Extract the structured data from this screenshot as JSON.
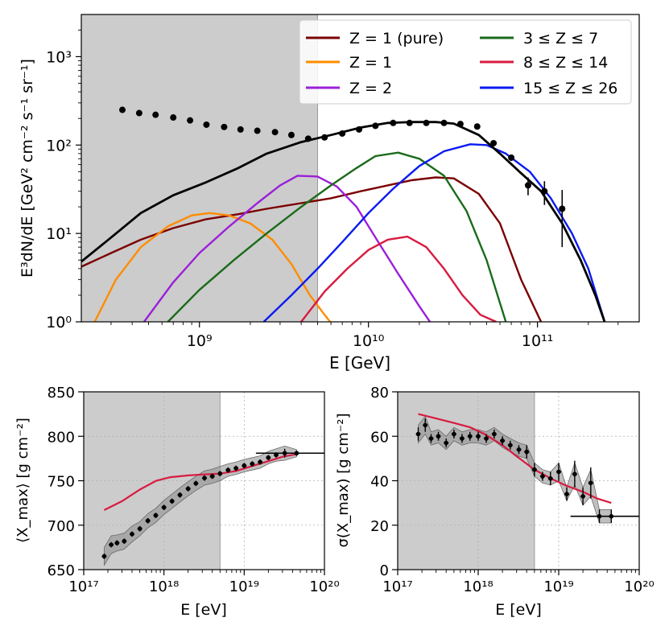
{
  "chart_data": [
    {
      "type": "line",
      "xlabel": "E [GeV]",
      "ylabel": "E³dN/dE [GeV² cm⁻² s⁻¹ sr⁻¹]",
      "xscale": "log",
      "yscale": "log",
      "xlim": [
        200000000.0,
        400000000000.0
      ],
      "ylim": [
        1,
        3000
      ],
      "x_ticks": [
        1000000000.0,
        10000000000.0,
        100000000000.0
      ],
      "x_tick_labels": [
        "10⁹",
        "10¹⁰",
        "10¹¹"
      ],
      "y_ticks": [
        1,
        10,
        100,
        1000
      ],
      "y_tick_labels": [
        "10⁰",
        "10¹",
        "10²",
        "10³"
      ],
      "shaded_region": [
        200000000.0,
        5000000000.0
      ],
      "legend_position": "upper-right",
      "series": [
        {
          "name": "Z = 1 (pure)",
          "color": "#7b0000",
          "x": [
            200000000.0,
            300000000.0,
            450000000.0,
            700000000.0,
            1100000000.0,
            1700000000.0,
            2500000000.0,
            4000000000.0,
            6000000000.0,
            9000000000.0,
            13000000000.0,
            18000000000.0,
            25000000000.0,
            32000000000.0,
            45000000000.0,
            60000000000.0,
            80000000000.0,
            105000000000.0
          ],
          "y": [
            4.2,
            6.0,
            8.5,
            11.5,
            14.5,
            16.5,
            19,
            22,
            25,
            30,
            35,
            40,
            43,
            42,
            28,
            13,
            3.0,
            1.0
          ]
        },
        {
          "name": "Z = 1",
          "color": "#ff8c00",
          "x": [
            240000000.0,
            320000000.0,
            450000000.0,
            650000000.0,
            900000000.0,
            1150000000.0,
            1500000000.0,
            2000000000.0,
            2700000000.0,
            3500000000.0,
            4500000000.0,
            5500000000.0,
            6200000000.0
          ],
          "y": [
            1.0,
            3.0,
            7.0,
            12,
            16,
            17,
            16,
            13,
            8.5,
            4.5,
            2.0,
            1.2,
            0.9
          ]
        },
        {
          "name": "Z = 2",
          "color": "#9b1fd9",
          "x": [
            470000000.0,
            700000000.0,
            1000000000.0,
            1500000000.0,
            2200000000.0,
            3000000000.0,
            3800000000.0,
            5000000000.0,
            6500000000.0,
            8500000000.0,
            11000000000.0,
            15000000000.0,
            20000000000.0,
            24000000000.0
          ],
          "y": [
            1.0,
            2.8,
            6.0,
            12,
            22,
            35,
            45,
            44,
            34,
            20,
            9,
            3.5,
            1.5,
            0.9
          ]
        },
        {
          "name": "3 ≤ Z ≤ 7",
          "color": "#1a6b1a",
          "x": [
            650000000.0,
            1000000000.0,
            1600000000.0,
            2500000000.0,
            4000000000.0,
            6000000000.0,
            8500000000.0,
            11000000000.0,
            15000000000.0,
            20000000000.0,
            28000000000.0,
            38000000000.0,
            50000000000.0,
            65000000000.0
          ],
          "y": [
            1.0,
            2.3,
            5.0,
            10,
            20,
            35,
            55,
            75,
            82,
            70,
            45,
            18,
            5,
            1.0
          ]
        },
        {
          "name": "8 ≤ Z ≤ 14",
          "color": "#d81b40",
          "x": [
            4000000000.0,
            5500000000.0,
            7500000000.0,
            10000000000.0,
            13000000000.0,
            17000000000.0,
            22000000000.0,
            28000000000.0,
            36000000000.0,
            46000000000.0,
            57000000000.0
          ],
          "y": [
            1.0,
            2.2,
            4.0,
            6.5,
            8.5,
            9.2,
            7.0,
            4.0,
            2.0,
            1.2,
            1.0
          ]
        },
        {
          "name": "15 ≤ Z ≤ 26",
          "color": "#0b1bf0",
          "x": [
            2400000000.0,
            3500000000.0,
            5000000000.0,
            7000000000.0,
            10000000000.0,
            14000000000.0,
            20000000000.0,
            28000000000.0,
            40000000000.0,
            50000000000.0,
            65000000000.0,
            90000000000.0,
            120000000000.0,
            160000000000.0,
            200000000000.0,
            250000000000.0
          ],
          "y": [
            1.0,
            2.0,
            4.0,
            8.0,
            17,
            32,
            58,
            85,
            102,
            100,
            80,
            50,
            25,
            10,
            4,
            1.0
          ]
        },
        {
          "name": "",
          "color": "#000000",
          "x": [
            200000000.0,
            300000000.0,
            450000000.0,
            700000000.0,
            1100000000.0,
            1700000000.0,
            2500000000.0,
            4000000000.0,
            6000000000.0,
            9000000000.0,
            13000000000.0,
            18000000000.0,
            25000000000.0,
            32000000000.0,
            45000000000.0,
            60000000000.0,
            80000000000.0,
            105000000000.0,
            140000000000.0,
            180000000000.0,
            220000000000.0,
            260000000000.0
          ],
          "y": [
            4.8,
            9.0,
            17,
            27,
            38,
            55,
            80,
            108,
            130,
            158,
            178,
            182,
            182,
            175,
            130,
            80,
            48,
            30,
            13,
            5,
            2.0,
            0.8
          ]
        }
      ],
      "data_points": {
        "x": [
          350000000.0,
          440000000.0,
          550000000.0,
          700000000.0,
          880000000.0,
          1100000000.0,
          1400000000.0,
          1750000000.0,
          2200000000.0,
          2800000000.0,
          3500000000.0,
          4400000000.0,
          5500000000.0,
          7000000000.0,
          8800000000.0,
          11000000000.0,
          14000000000.0,
          17500000000.0,
          22000000000.0,
          28000000000.0,
          35000000000.0,
          44000000000.0,
          55000000000.0,
          70000000000.0,
          88000000000.0,
          110000000000.0,
          140000000000.0
        ],
        "y": [
          250,
          230,
          220,
          205,
          190,
          170,
          160,
          150,
          145,
          140,
          130,
          118,
          122,
          135,
          150,
          165,
          178,
          178,
          178,
          178,
          173,
          162,
          105,
          72,
          35,
          30,
          19
        ],
        "y_err": [
          0,
          0,
          0,
          0,
          0,
          0,
          0,
          0,
          0,
          0,
          0,
          0,
          0,
          0,
          0,
          0,
          0,
          0,
          0,
          0,
          0,
          0,
          0,
          6,
          8,
          9,
          12
        ]
      }
    },
    {
      "type": "scatter",
      "xlabel": "E [eV]",
      "ylabel": "⟨X_max⟩ [g cm⁻²]",
      "xscale": "log",
      "xlim": [
        1e+17,
        1e+20
      ],
      "ylim": [
        650,
        850
      ],
      "x_ticks": [
        1e+17,
        1e+18,
        1e+19,
        1e+20
      ],
      "x_tick_labels": [
        "10¹⁷",
        "10¹⁸",
        "10¹⁹",
        "10²⁰"
      ],
      "y_ticks": [
        650,
        700,
        750,
        800,
        850
      ],
      "y_tick_labels": [
        "650",
        "700",
        "750",
        "800",
        "850"
      ],
      "shaded_region": [
        1e+17,
        5e+18
      ],
      "grid": true,
      "model": {
        "color": "#d81b40",
        "x": [
          1.8e+17,
          3e+17,
          5e+17,
          8e+17,
          1.2e+18,
          2e+18,
          3e+18,
          5e+18,
          8e+18,
          1.2e+19,
          2e+19,
          3e+19,
          4.5e+19
        ],
        "y": [
          717,
          727,
          740,
          750,
          754,
          756,
          757,
          758,
          761,
          766,
          772,
          777,
          780
        ]
      },
      "data": {
        "x": [
          1.8e+17,
          2.2e+17,
          2.6e+17,
          3.2e+17,
          4e+17,
          5e+17,
          6.3e+17,
          7.9e+17,
          1e+18,
          1.26e+18,
          1.58e+18,
          2e+18,
          2.5e+18,
          3.2e+18,
          4e+18,
          5e+18,
          6.3e+18,
          7.9e+18,
          1e+19,
          1.26e+19,
          1.58e+19,
          2e+19,
          2.5e+19,
          3.2e+19,
          4.5e+19
        ],
        "y": [
          665,
          678,
          680,
          682,
          690,
          696,
          705,
          711,
          720,
          727,
          734,
          741,
          747,
          753,
          755,
          758,
          762,
          764,
          767,
          769,
          771,
          776,
          779,
          781,
          781
        ],
        "y_err": [
          3,
          3,
          3,
          3,
          3,
          3,
          3,
          3,
          3,
          3,
          3,
          3,
          3,
          3,
          3,
          3,
          3,
          3,
          3,
          3,
          3,
          3,
          3,
          5,
          3
        ],
        "band_half_width": [
          10,
          10,
          9,
          9,
          9,
          8,
          8,
          8,
          8,
          8,
          8,
          8,
          8,
          8,
          8,
          8,
          7,
          7,
          7,
          7,
          7,
          7,
          7,
          8,
          4
        ]
      },
      "last_point_xerr": [
        1.4e+19,
        1e+20
      ]
    },
    {
      "type": "scatter",
      "xlabel": "E [eV]",
      "ylabel": "σ(X_max) [g cm⁻²]",
      "xscale": "log",
      "xlim": [
        1e+17,
        1e+20
      ],
      "ylim": [
        0,
        80
      ],
      "x_ticks": [
        1e+17,
        1e+18,
        1e+19,
        1e+20
      ],
      "x_tick_labels": [
        "10¹⁷",
        "10¹⁸",
        "10¹⁹",
        "10²⁰"
      ],
      "y_ticks": [
        0,
        20,
        40,
        60,
        80
      ],
      "y_tick_labels": [
        "0",
        "20",
        "40",
        "60",
        "80"
      ],
      "shaded_region": [
        1e+17,
        5e+18
      ],
      "grid": true,
      "model": {
        "color": "#d81b40",
        "x": [
          1.8e+17,
          3e+17,
          5e+17,
          8e+17,
          1.2e+18,
          2e+18,
          3e+18,
          5e+18,
          8e+18,
          1.2e+19,
          2e+19,
          3e+19,
          4.5e+19
        ],
        "y": [
          70,
          68,
          66,
          64,
          61,
          56,
          51,
          45,
          41,
          38,
          35,
          32,
          30
        ]
      },
      "data": {
        "x": [
          1.8e+17,
          2.2e+17,
          2.6e+17,
          3.2e+17,
          4e+17,
          5e+17,
          6.3e+17,
          7.9e+17,
          1e+18,
          1.26e+18,
          1.58e+18,
          2e+18,
          2.5e+18,
          3.2e+18,
          4e+18,
          5e+18,
          6.3e+18,
          7.9e+18,
          1e+19,
          1.26e+19,
          1.58e+19,
          2e+19,
          2.5e+19,
          3.2e+19,
          4.5e+19
        ],
        "y": [
          61,
          65,
          59,
          60,
          57,
          61,
          59,
          60,
          60,
          59,
          61,
          58,
          56,
          54,
          53,
          45,
          42,
          41,
          44,
          34,
          43,
          33,
          39,
          24,
          24
        ],
        "y_err": [
          3,
          3,
          2,
          2,
          2,
          2,
          2,
          2,
          2,
          2,
          2,
          2,
          2,
          2,
          3,
          3,
          2,
          3,
          4,
          3,
          6,
          4,
          7,
          3,
          3
        ],
        "band_half_width": [
          4,
          4,
          3,
          3,
          3,
          3,
          3,
          3,
          3,
          3,
          3,
          3,
          3,
          3,
          3,
          3,
          3,
          3,
          4,
          3,
          5,
          4,
          6,
          3,
          3
        ]
      },
      "last_point_xerr": [
        1.4e+19,
        1e+20
      ]
    }
  ]
}
